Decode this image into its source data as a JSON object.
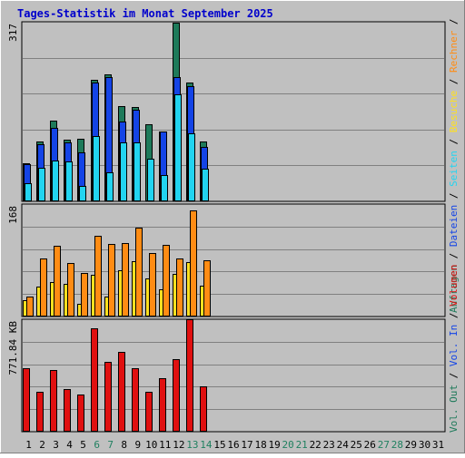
{
  "title": "Tages-Statistik im Monat September 2025",
  "colors": {
    "frame_bg": "#c0c0c0",
    "panel_border": "#000000",
    "grid": "#808080",
    "title": "#0000cc",
    "day_weekday": "#000000",
    "day_weekend": "#208060",
    "anfragen": "#1e7a5a",
    "dateien": "#1444e6",
    "seiten": "#22d4f0",
    "besuche": "#ffe020",
    "rechner": "#ff8c14",
    "volumen": "#e01010"
  },
  "legend": {
    "upper": [
      {
        "key": "anfragen",
        "label": "Anfragen"
      },
      {
        "key": "sep",
        "label": "/"
      },
      {
        "key": "dateien",
        "label": "Dateien"
      },
      {
        "key": "sep",
        "label": "/"
      },
      {
        "key": "seiten",
        "label": "Seiten"
      },
      {
        "key": "sep",
        "label": "/"
      },
      {
        "key": "besuche",
        "label": "Besuche"
      },
      {
        "key": "sep",
        "label": "/"
      },
      {
        "key": "rechner",
        "label": "Rechner"
      },
      {
        "key": "sep",
        "label": "/"
      }
    ],
    "lower": [
      {
        "key": "anfragen",
        "label": "Vol. Out"
      },
      {
        "key": "sep",
        "label": "/"
      },
      {
        "key": "dateien",
        "label": "Vol. In"
      },
      {
        "key": "sep",
        "label": "/"
      },
      {
        "key": "volumen",
        "label": "Volumen"
      }
    ]
  },
  "chart_data": [
    {
      "type": "bar",
      "panel": "top",
      "ymax_label": "317",
      "ylim": [
        0,
        317
      ],
      "grid": true,
      "categories": [
        "1",
        "2",
        "3",
        "4",
        "5",
        "6",
        "7",
        "8",
        "9",
        "10",
        "11",
        "12",
        "13",
        "14",
        "15",
        "16",
        "17",
        "18",
        "19",
        "20",
        "21",
        "22",
        "23",
        "24",
        "25",
        "26",
        "27",
        "28",
        "29",
        "30",
        "31"
      ],
      "series": [
        {
          "name": "Anfragen",
          "color_key": "anfragen",
          "values": [
            68,
            106,
            143,
            110,
            111,
            215,
            225,
            169,
            168,
            137,
            124,
            317,
            210,
            106,
            null,
            null,
            null,
            null,
            null,
            null,
            null,
            null,
            null,
            null,
            null,
            null,
            null,
            null,
            null,
            null,
            null
          ]
        },
        {
          "name": "Dateien",
          "color_key": "dateien",
          "values": [
            66,
            102,
            131,
            105,
            87,
            210,
            220,
            142,
            162,
            null,
            124,
            220,
            205,
            97,
            null,
            null,
            null,
            null,
            null,
            null,
            null,
            null,
            null,
            null,
            null,
            null,
            null,
            null,
            null,
            null,
            null
          ]
        },
        {
          "name": "Seiten",
          "color_key": "seiten",
          "values": [
            32,
            60,
            73,
            70,
            28,
            116,
            51,
            104,
            104,
            75,
            46,
            190,
            120,
            58,
            null,
            null,
            null,
            null,
            null,
            null,
            null,
            null,
            null,
            null,
            null,
            null,
            null,
            null,
            null,
            null,
            null
          ]
        }
      ]
    },
    {
      "type": "bar",
      "panel": "middle",
      "ymax_label": "168",
      "ylim": [
        0,
        168
      ],
      "grid": true,
      "categories": [
        "1",
        "2",
        "3",
        "4",
        "5",
        "6",
        "7",
        "8",
        "9",
        "10",
        "11",
        "12",
        "13",
        "14",
        "15",
        "16",
        "17",
        "18",
        "19",
        "20",
        "21",
        "22",
        "23",
        "24",
        "25",
        "26",
        "27",
        "28",
        "29",
        "30",
        "31"
      ],
      "series": [
        {
          "name": "Besuche",
          "color_key": "besuche",
          "values": [
            24,
            45,
            52,
            49,
            19,
            63,
            30,
            69,
            83,
            58,
            41,
            64,
            82,
            47,
            null,
            null,
            null,
            null,
            null,
            null,
            null,
            null,
            null,
            null,
            null,
            null,
            null,
            null,
            null,
            null,
            null
          ]
        },
        {
          "name": "Rechner",
          "color_key": "rechner",
          "values": [
            30,
            87,
            107,
            80,
            66,
            122,
            109,
            110,
            134,
            95,
            108,
            88,
            160,
            85,
            null,
            null,
            null,
            null,
            null,
            null,
            null,
            null,
            null,
            null,
            null,
            null,
            null,
            null,
            null,
            null,
            null
          ]
        }
      ]
    },
    {
      "type": "bar",
      "panel": "bottom",
      "ymax_label": "771.84 KB",
      "ylim": [
        0,
        771.84
      ],
      "grid": true,
      "categories": [
        "1",
        "2",
        "3",
        "4",
        "5",
        "6",
        "7",
        "8",
        "9",
        "10",
        "11",
        "12",
        "13",
        "14",
        "15",
        "16",
        "17",
        "18",
        "19",
        "20",
        "21",
        "22",
        "23",
        "24",
        "25",
        "26",
        "27",
        "28",
        "29",
        "30",
        "31"
      ],
      "series": [
        {
          "name": "Volumen",
          "color_key": "volumen",
          "values": [
            440,
            275,
            425,
            295,
            260,
            715,
            485,
            550,
            440,
            275,
            370,
            500,
            775,
            315,
            null,
            null,
            null,
            null,
            null,
            null,
            null,
            null,
            null,
            null,
            null,
            null,
            null,
            null,
            null,
            null,
            null
          ]
        }
      ]
    }
  ],
  "day_labels": [
    {
      "label": "1",
      "weekend": false
    },
    {
      "label": "2",
      "weekend": false
    },
    {
      "label": "3",
      "weekend": false
    },
    {
      "label": "4",
      "weekend": false
    },
    {
      "label": "5",
      "weekend": false
    },
    {
      "label": "6",
      "weekend": true
    },
    {
      "label": "7",
      "weekend": true
    },
    {
      "label": "8",
      "weekend": false
    },
    {
      "label": "9",
      "weekend": false
    },
    {
      "label": "10",
      "weekend": false
    },
    {
      "label": "11",
      "weekend": false
    },
    {
      "label": "12",
      "weekend": false
    },
    {
      "label": "13",
      "weekend": true
    },
    {
      "label": "14",
      "weekend": true
    },
    {
      "label": "15",
      "weekend": false
    },
    {
      "label": "16",
      "weekend": false
    },
    {
      "label": "17",
      "weekend": false
    },
    {
      "label": "18",
      "weekend": false
    },
    {
      "label": "19",
      "weekend": false
    },
    {
      "label": "20",
      "weekend": true
    },
    {
      "label": "21",
      "weekend": true
    },
    {
      "label": "22",
      "weekend": false
    },
    {
      "label": "23",
      "weekend": false
    },
    {
      "label": "24",
      "weekend": false
    },
    {
      "label": "25",
      "weekend": false
    },
    {
      "label": "26",
      "weekend": false
    },
    {
      "label": "27",
      "weekend": true
    },
    {
      "label": "28",
      "weekend": true
    },
    {
      "label": "29",
      "weekend": false
    },
    {
      "label": "30",
      "weekend": false
    },
    {
      "label": "31",
      "weekend": false
    }
  ]
}
